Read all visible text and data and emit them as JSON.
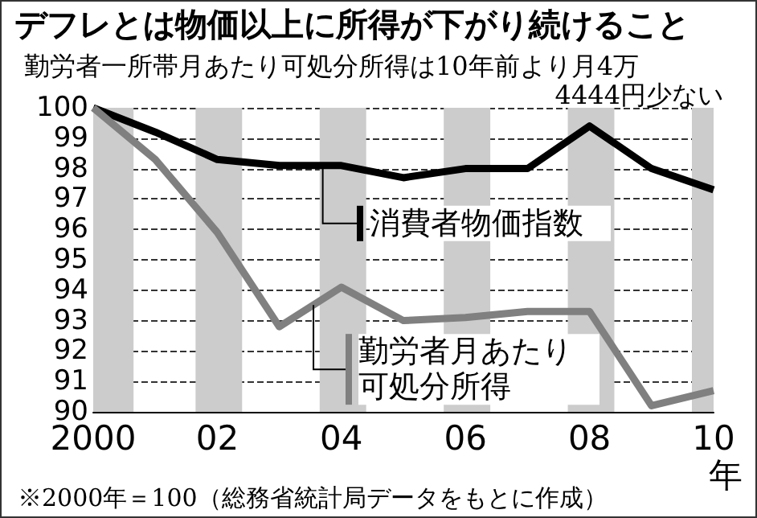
{
  "chart_data": {
    "type": "line",
    "title": "デフレとは物価以上に所得が下がり続けること",
    "subtitle": "勤労者一所帯月あたり可処分所得は10年前より月4万\n4444円少ない",
    "x": [
      2000,
      2001,
      2002,
      2003,
      2004,
      2005,
      2006,
      2007,
      2008,
      2009,
      2010
    ],
    "xlabel": "年",
    "series": [
      {
        "name": "消費者物価指数",
        "color": "#000000",
        "values": [
          100,
          99.2,
          98.3,
          98.1,
          98.1,
          97.7,
          98.0,
          98.0,
          99.4,
          98.0,
          97.3
        ]
      },
      {
        "name": "勤労者月あたり可処分所得",
        "color": "#808080",
        "values": [
          100,
          98.3,
          95.9,
          92.8,
          94.1,
          93.0,
          93.1,
          93.3,
          93.3,
          90.2,
          90.7
        ]
      }
    ],
    "xlim": [
      2000,
      2010
    ],
    "xticks": [
      {
        "value": 2000,
        "label": "2000"
      },
      {
        "value": 2002,
        "label": "02"
      },
      {
        "value": 2004,
        "label": "04"
      },
      {
        "value": 2006,
        "label": "06"
      },
      {
        "value": 2008,
        "label": "08"
      },
      {
        "value": 2010,
        "label": "10"
      }
    ],
    "ylim": [
      90,
      100
    ],
    "yticks": [
      90,
      91,
      92,
      93,
      94,
      95,
      96,
      97,
      98,
      99,
      100
    ],
    "grid": "y",
    "line_style": "solid",
    "marker": "none",
    "legend": "center",
    "bands": [
      {
        "axis": "x",
        "from": 2000,
        "to": 2000.65,
        "color": "#cccccc"
      },
      {
        "axis": "x",
        "from": 2001.65,
        "to": 2002.4,
        "color": "#cccccc"
      },
      {
        "axis": "x",
        "from": 2003.65,
        "to": 2004.4,
        "color": "#cccccc"
      },
      {
        "axis": "x",
        "from": 2005.65,
        "to": 2006.4,
        "color": "#cccccc"
      },
      {
        "axis": "x",
        "from": 2007.65,
        "to": 2008.4,
        "color": "#cccccc"
      },
      {
        "axis": "x",
        "from": 2009.65,
        "to": 2010,
        "color": "#cccccc"
      }
    ],
    "annotations": [
      "※2000年＝100（総務省統計局データをもとに作成）"
    ]
  }
}
